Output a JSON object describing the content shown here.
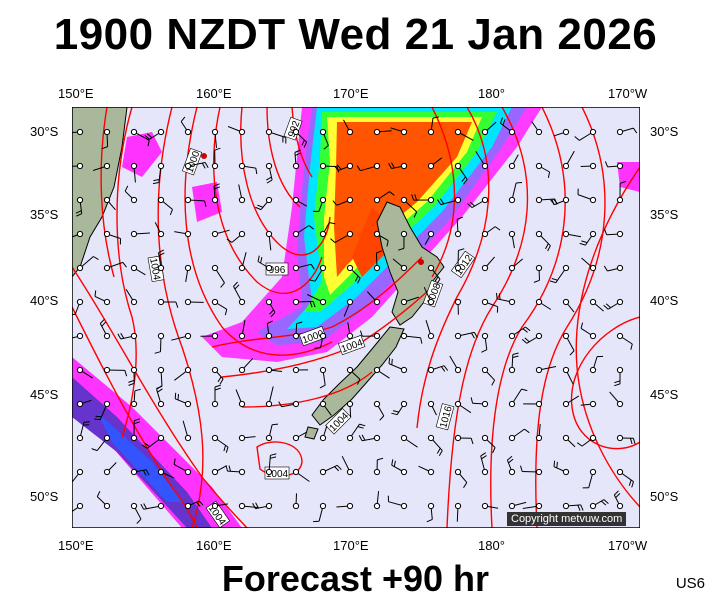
{
  "header": {
    "title": "1900 NZDT Wed 21 Jan 2026"
  },
  "footer": {
    "forecast": "Forecast +90 hr",
    "code": "US6"
  },
  "map": {
    "copyright": "Copyright metvuw.com",
    "lon_labels": [
      "150°E",
      "160°E",
      "170°E",
      "180°",
      "170°W"
    ],
    "lat_labels": [
      "30°S",
      "35°S",
      "40°S",
      "45°S",
      "50°S"
    ],
    "isobar_labels": [
      "992",
      "1000",
      "1004",
      "996",
      "1000",
      "1004",
      "1008",
      "1012",
      "1016",
      "1004",
      "1004",
      "1004"
    ],
    "colors": {
      "background": "#e6e6fa",
      "isobar": "#ff0000",
      "land": "#a9b89a"
    }
  }
}
